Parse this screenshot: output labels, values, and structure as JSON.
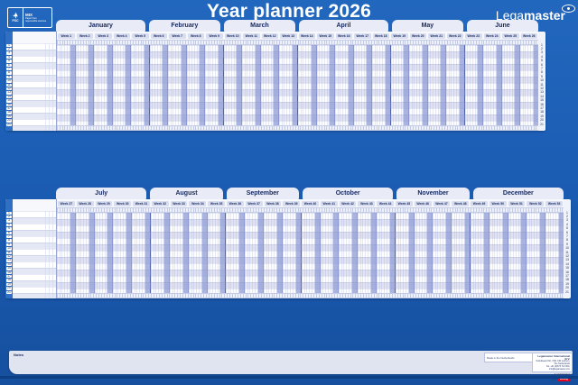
{
  "header": {
    "title": "Year planner 2026",
    "brand_lega": "Lega",
    "brand_master": "master"
  },
  "fsc_badge": {
    "fsc_text": "FSC",
    "mix_label": "MIX",
    "line1": "Paper from",
    "line2": "responsible sources"
  },
  "planner": {
    "week_prefix": "Week",
    "sections": [
      {
        "name": "first-half",
        "months": [
          {
            "name": "January",
            "weeks": [
              1,
              2,
              3,
              4,
              5
            ]
          },
          {
            "name": "February",
            "weeks": [
              6,
              7,
              8,
              9
            ]
          },
          {
            "name": "March",
            "weeks": [
              10,
              11,
              12,
              13
            ]
          },
          {
            "name": "April",
            "weeks": [
              14,
              15,
              16,
              17,
              18
            ]
          },
          {
            "name": "May",
            "weeks": [
              19,
              20,
              21,
              22
            ]
          },
          {
            "name": "June",
            "weeks": [
              23,
              24,
              25,
              26
            ]
          }
        ],
        "rows": [
          1,
          2,
          3,
          4,
          5,
          6,
          7,
          8,
          9,
          10,
          11,
          12,
          13,
          14,
          15,
          16,
          17,
          18,
          19,
          20,
          21
        ]
      },
      {
        "name": "second-half",
        "months": [
          {
            "name": "July",
            "weeks": [
              27,
              28,
              29,
              30,
              31
            ]
          },
          {
            "name": "August",
            "weeks": [
              32,
              33,
              34,
              35
            ]
          },
          {
            "name": "September",
            "weeks": [
              36,
              37,
              38,
              39
            ]
          },
          {
            "name": "October",
            "weeks": [
              40,
              41,
              42,
              43,
              44
            ]
          },
          {
            "name": "November",
            "weeks": [
              45,
              46,
              47,
              48
            ]
          },
          {
            "name": "December",
            "weeks": [
              49,
              50,
              51,
              52,
              53
            ]
          }
        ],
        "rows": [
          1,
          2,
          3,
          4,
          5,
          6,
          7,
          8,
          9,
          10,
          11,
          12,
          13,
          14,
          15,
          16,
          17,
          18,
          19,
          20,
          21
        ]
      }
    ]
  },
  "notes": {
    "label": "Notes"
  },
  "footer": {
    "made_in": "Made in the Netherlands",
    "company": "Legamaster International B.V.",
    "address": "Kwinkweerd 62, 7241 CW Lochem, The Netherlands",
    "contact": "Tel. +31 (0)573 713 000, info@legamaster.com",
    "brand": "Legamaster",
    "group": "part of the edding group",
    "edding": "edding"
  },
  "colors": {
    "background_blue": "#1a5bb1",
    "panel_light": "#f7f8fc",
    "tab_fill": "#e9ecf7",
    "navy_text": "#16275c",
    "weekend_stripe": "#aab4e0",
    "left_strip_blue": "#2f6fc4",
    "edding_red": "#e3001b"
  }
}
